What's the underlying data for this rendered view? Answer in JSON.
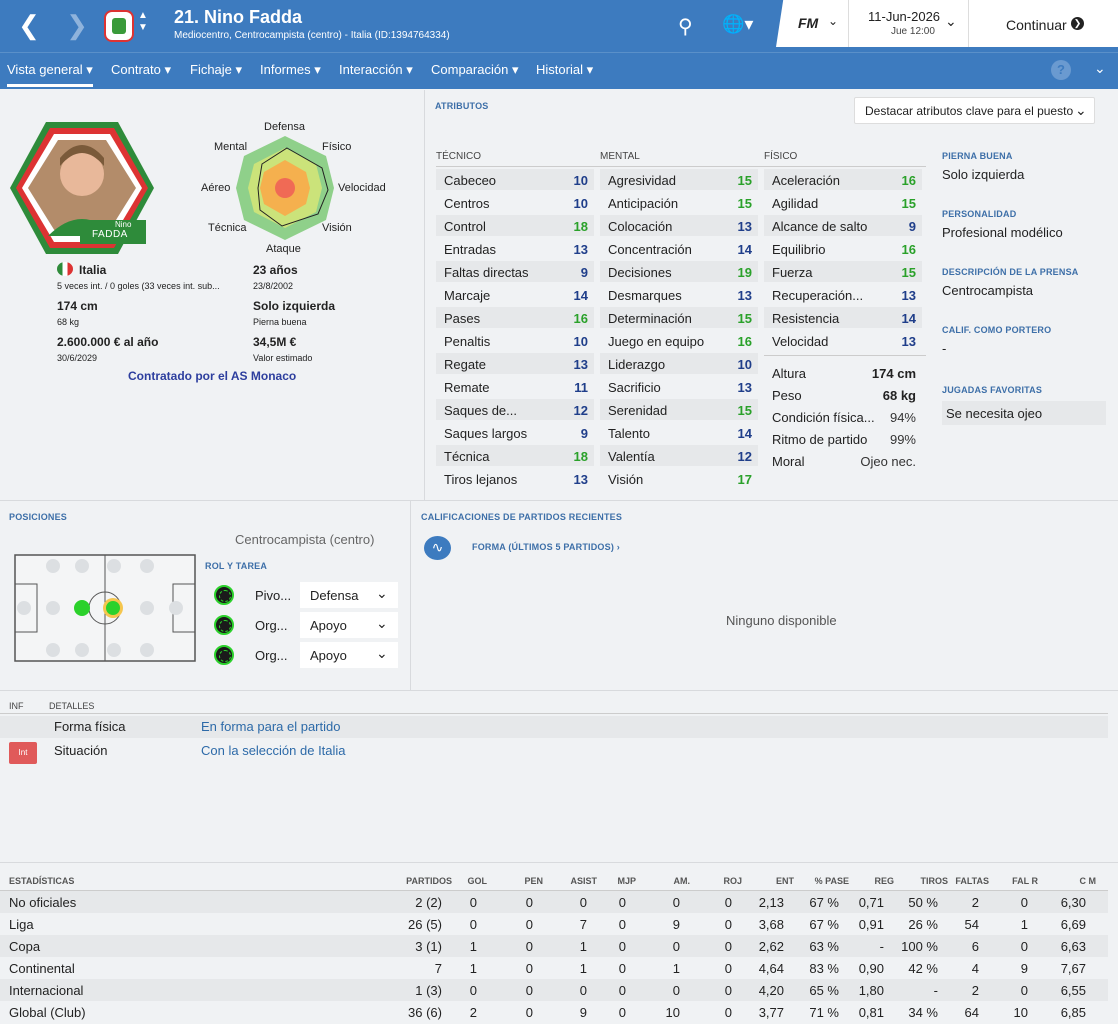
{
  "header": {
    "player_title": "21. Nino Fadda",
    "player_subtitle": "Mediocentro, Centrocampista (centro) - Italia (ID:1394764334)",
    "date": "11-Jun-2026",
    "time": "Jue 12:00",
    "continue_label": "Continuar",
    "fm_label": "FM"
  },
  "menu": [
    "Vista general",
    "Contrato",
    "Fichaje",
    "Informes",
    "Interacción",
    "Comparación",
    "Historial"
  ],
  "profile": {
    "card_name_small": "Nino",
    "card_name": "FADDA",
    "nation": "Italia",
    "caps": "5 veces int. / 0 goles (33 veces int. sub...",
    "age": "23 años",
    "dob": "23/8/2002",
    "height": "174 cm",
    "weight": "68 kg",
    "foot": "Solo izquierda",
    "foot_label": "Pierna buena",
    "wage": "2.600.000 € al año",
    "contract_end": "30/6/2029",
    "value": "34,5M €",
    "value_label": "Valor estimado",
    "contracted": "Contratado por el AS Monaco"
  },
  "radar_labels": {
    "top": "Defensa",
    "tl": "Mental",
    "tr": "Físico",
    "l": "Aéreo",
    "r": "Velocidad",
    "bl": "Técnica",
    "br": "Visión",
    "bottom": "Ataque"
  },
  "attributes": {
    "section": "ATRIBUTOS",
    "highlight_label": "Destacar atributos clave para el puesto",
    "technical_header": "TÉCNICO",
    "mental_header": "MENTAL",
    "physical_header": "FÍSICO",
    "technical": [
      {
        "n": "Cabeceo",
        "v": "10"
      },
      {
        "n": "Centros",
        "v": "10"
      },
      {
        "n": "Control",
        "v": "18"
      },
      {
        "n": "Entradas",
        "v": "13"
      },
      {
        "n": "Faltas directas",
        "v": "9"
      },
      {
        "n": "Marcaje",
        "v": "14"
      },
      {
        "n": "Pases",
        "v": "16"
      },
      {
        "n": "Penaltis",
        "v": "10"
      },
      {
        "n": "Regate",
        "v": "13"
      },
      {
        "n": "Remate",
        "v": "11"
      },
      {
        "n": "Saques de...",
        "v": "12"
      },
      {
        "n": "Saques largos",
        "v": "9"
      },
      {
        "n": "Técnica",
        "v": "18"
      },
      {
        "n": "Tiros lejanos",
        "v": "13"
      }
    ],
    "mental": [
      {
        "n": "Agresividad",
        "v": "15"
      },
      {
        "n": "Anticipación",
        "v": "15"
      },
      {
        "n": "Colocación",
        "v": "13"
      },
      {
        "n": "Concentración",
        "v": "14"
      },
      {
        "n": "Decisiones",
        "v": "19"
      },
      {
        "n": "Desmarques",
        "v": "13"
      },
      {
        "n": "Determinación",
        "v": "15"
      },
      {
        "n": "Juego en equipo",
        "v": "16"
      },
      {
        "n": "Liderazgo",
        "v": "10"
      },
      {
        "n": "Sacrificio",
        "v": "13"
      },
      {
        "n": "Serenidad",
        "v": "15"
      },
      {
        "n": "Talento",
        "v": "14"
      },
      {
        "n": "Valentía",
        "v": "12"
      },
      {
        "n": "Visión",
        "v": "17"
      }
    ],
    "physical": [
      {
        "n": "Aceleración",
        "v": "16"
      },
      {
        "n": "Agilidad",
        "v": "15"
      },
      {
        "n": "Alcance de salto",
        "v": "9"
      },
      {
        "n": "Equilibrio",
        "v": "16"
      },
      {
        "n": "Fuerza",
        "v": "15"
      },
      {
        "n": "Recuperación...",
        "v": "13"
      },
      {
        "n": "Resistencia",
        "v": "14"
      },
      {
        "n": "Velocidad",
        "v": "13"
      }
    ],
    "extra": [
      {
        "n": "Altura",
        "v": "174 cm"
      },
      {
        "n": "Peso",
        "v": "68 kg"
      },
      {
        "n": "Condición física...",
        "v": "94%"
      },
      {
        "n": "Ritmo de partido",
        "v": "99%"
      },
      {
        "n": "Moral",
        "v": "Ojeo nec."
      }
    ]
  },
  "side": {
    "foot_h": "PIERNA BUENA",
    "foot_v": "Solo izquierda",
    "pers_h": "PERSONALIDAD",
    "pers_v": "Profesional modélico",
    "press_h": "DESCRIPCIÓN DE LA PRENSA",
    "press_v": "Centrocampista",
    "gk_h": "CALIF. COMO PORTERO",
    "gk_v": "-",
    "moves_h": "JUGADAS FAVORITAS",
    "moves_v": "Se necesita ojeo"
  },
  "positions": {
    "section": "POSICIONES",
    "position_name": "Centrocampista (centro)",
    "roles_header": "ROL Y TAREA",
    "roles": [
      {
        "role": "Pivo...",
        "duty": "Defensa"
      },
      {
        "role": "Org...",
        "duty": "Apoyo"
      },
      {
        "role": "Org...",
        "duty": "Apoyo"
      }
    ]
  },
  "ratings": {
    "section": "CALIFICACIONES DE PARTIDOS RECIENTES",
    "form_link": "FORMA (ÚLTIMOS 5 PARTIDOS) ›",
    "none": "Ninguno disponible"
  },
  "info": {
    "h1": "INF",
    "h2": "DETALLES",
    "rows": [
      {
        "badge": "",
        "label": "Forma física",
        "value": "En forma para el partido"
      },
      {
        "badge": "Int",
        "label": "Situación",
        "value": "Con la selección de Italia"
      }
    ]
  },
  "stats": {
    "headers": [
      "ESTADÍSTICAS",
      "PARTIDOS",
      "GOL",
      "PEN",
      "ASIST",
      "MJP",
      "AM.",
      "ROJ",
      "ENT",
      "% PASE",
      "REG",
      "TIROS",
      "FALTAS",
      "FAL R",
      "C M"
    ],
    "rows": [
      [
        "No oficiales",
        "2 (2)",
        "0",
        "0",
        "0",
        "0",
        "0",
        "0",
        "2,13",
        "67 %",
        "0,71",
        "50 %",
        "2",
        "0",
        "6,30"
      ],
      [
        "Liga",
        "26 (5)",
        "0",
        "0",
        "7",
        "0",
        "9",
        "0",
        "3,68",
        "67 %",
        "0,91",
        "26 %",
        "54",
        "1",
        "6,69"
      ],
      [
        "Copa",
        "3 (1)",
        "1",
        "0",
        "1",
        "0",
        "0",
        "0",
        "2,62",
        "63 %",
        "-",
        "100 %",
        "6",
        "0",
        "6,63"
      ],
      [
        "Continental",
        "7",
        "1",
        "0",
        "1",
        "0",
        "1",
        "0",
        "4,64",
        "83 %",
        "0,90",
        "42 %",
        "4",
        "9",
        "7,67"
      ],
      [
        "Internacional",
        "1 (3)",
        "0",
        "0",
        "0",
        "0",
        "0",
        "0",
        "4,20",
        "65 %",
        "1,80",
        "-",
        "2",
        "0",
        "6,55"
      ],
      [
        "Global (Club)",
        "36 (6)",
        "2",
        "0",
        "9",
        "0",
        "10",
        "0",
        "3,77",
        "71 %",
        "0,81",
        "34 %",
        "64",
        "10",
        "6,85"
      ]
    ]
  },
  "colors": {
    "accent": "#3d7bbf",
    "green": "#2aa12a",
    "navy": "#1f3e8a"
  }
}
